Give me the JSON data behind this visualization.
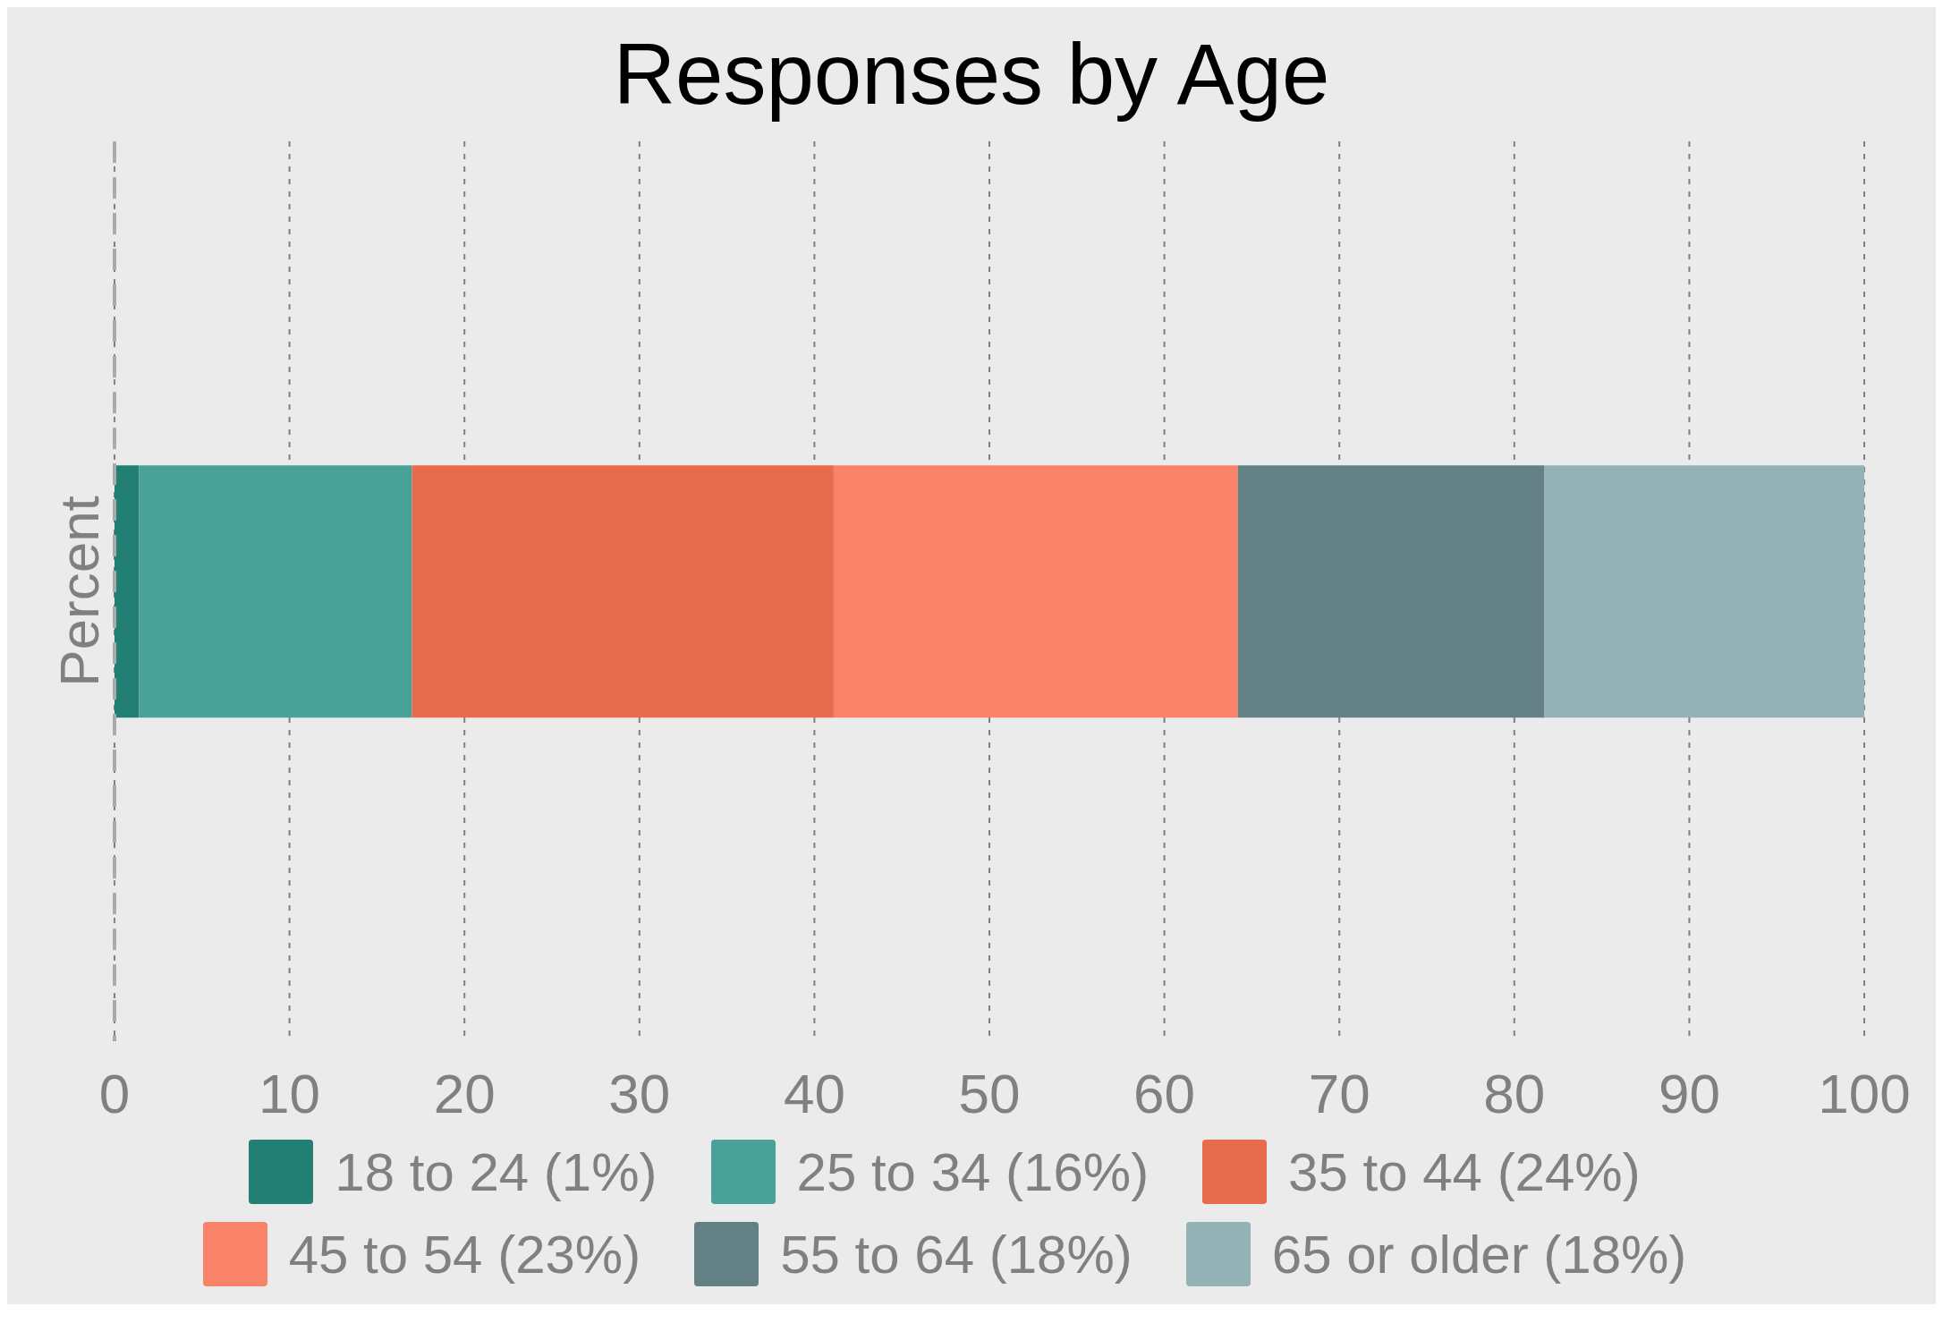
{
  "chart_data": {
    "type": "bar",
    "title": "Responses by Age",
    "orientation": "horizontal",
    "stacked": true,
    "categories": [
      "Percent"
    ],
    "series": [
      {
        "name": "18 to 24 (1%)",
        "color": "#217f74",
        "values": [
          1.4
        ]
      },
      {
        "name": "25 to 34 (16%)",
        "color": "#4aa198",
        "values": [
          15.6
        ]
      },
      {
        "name": "35 to 44 (24%)",
        "color": "#e76b4d",
        "values": [
          24.1
        ]
      },
      {
        "name": "45 to 54 (23%)",
        "color": "#f98368",
        "values": [
          23.1
        ]
      },
      {
        "name": "55 to 64 (18%)",
        "color": "#638085",
        "values": [
          17.5
        ]
      },
      {
        "name": "65 or older (18%)",
        "color": "#95b2b6",
        "values": [
          18.3
        ]
      }
    ],
    "xlim": [
      0,
      100
    ],
    "xticks": [
      0,
      10,
      20,
      30,
      40,
      50,
      60,
      70,
      80,
      90,
      100
    ],
    "grid": "x",
    "legend": "bottom"
  }
}
